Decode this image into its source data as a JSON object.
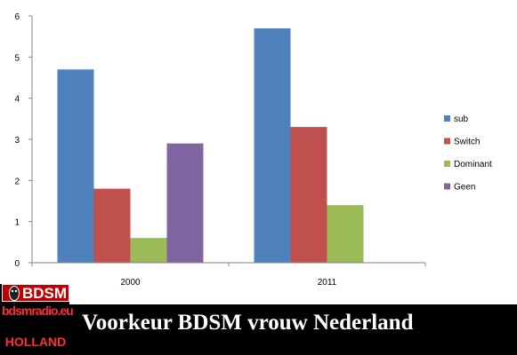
{
  "chart_data": {
    "type": "bar",
    "categories": [
      "2000",
      "2011"
    ],
    "series": [
      {
        "name": "sub",
        "color": "#4f81bd",
        "values": [
          4.7,
          5.7
        ]
      },
      {
        "name": "Switch",
        "color": "#c0504d",
        "values": [
          1.8,
          3.3
        ]
      },
      {
        "name": "Dominant",
        "color": "#9bbb59",
        "values": [
          0.6,
          1.4
        ]
      },
      {
        "name": "Geen",
        "color": "#8064a2",
        "values": [
          2.9,
          null
        ]
      }
    ],
    "ylim": [
      0,
      6
    ],
    "yticks": [
      "0",
      "1",
      "2",
      "3",
      "4",
      "5",
      "6"
    ],
    "grid": false,
    "legend": "right"
  },
  "banner": {
    "title": "Voorkeur BDSM vrouw Nederland"
  },
  "logo": {
    "top_text": "BDSM",
    "url_text": "bdsmradio.eu",
    "bottom_text": "HOLLAND"
  }
}
